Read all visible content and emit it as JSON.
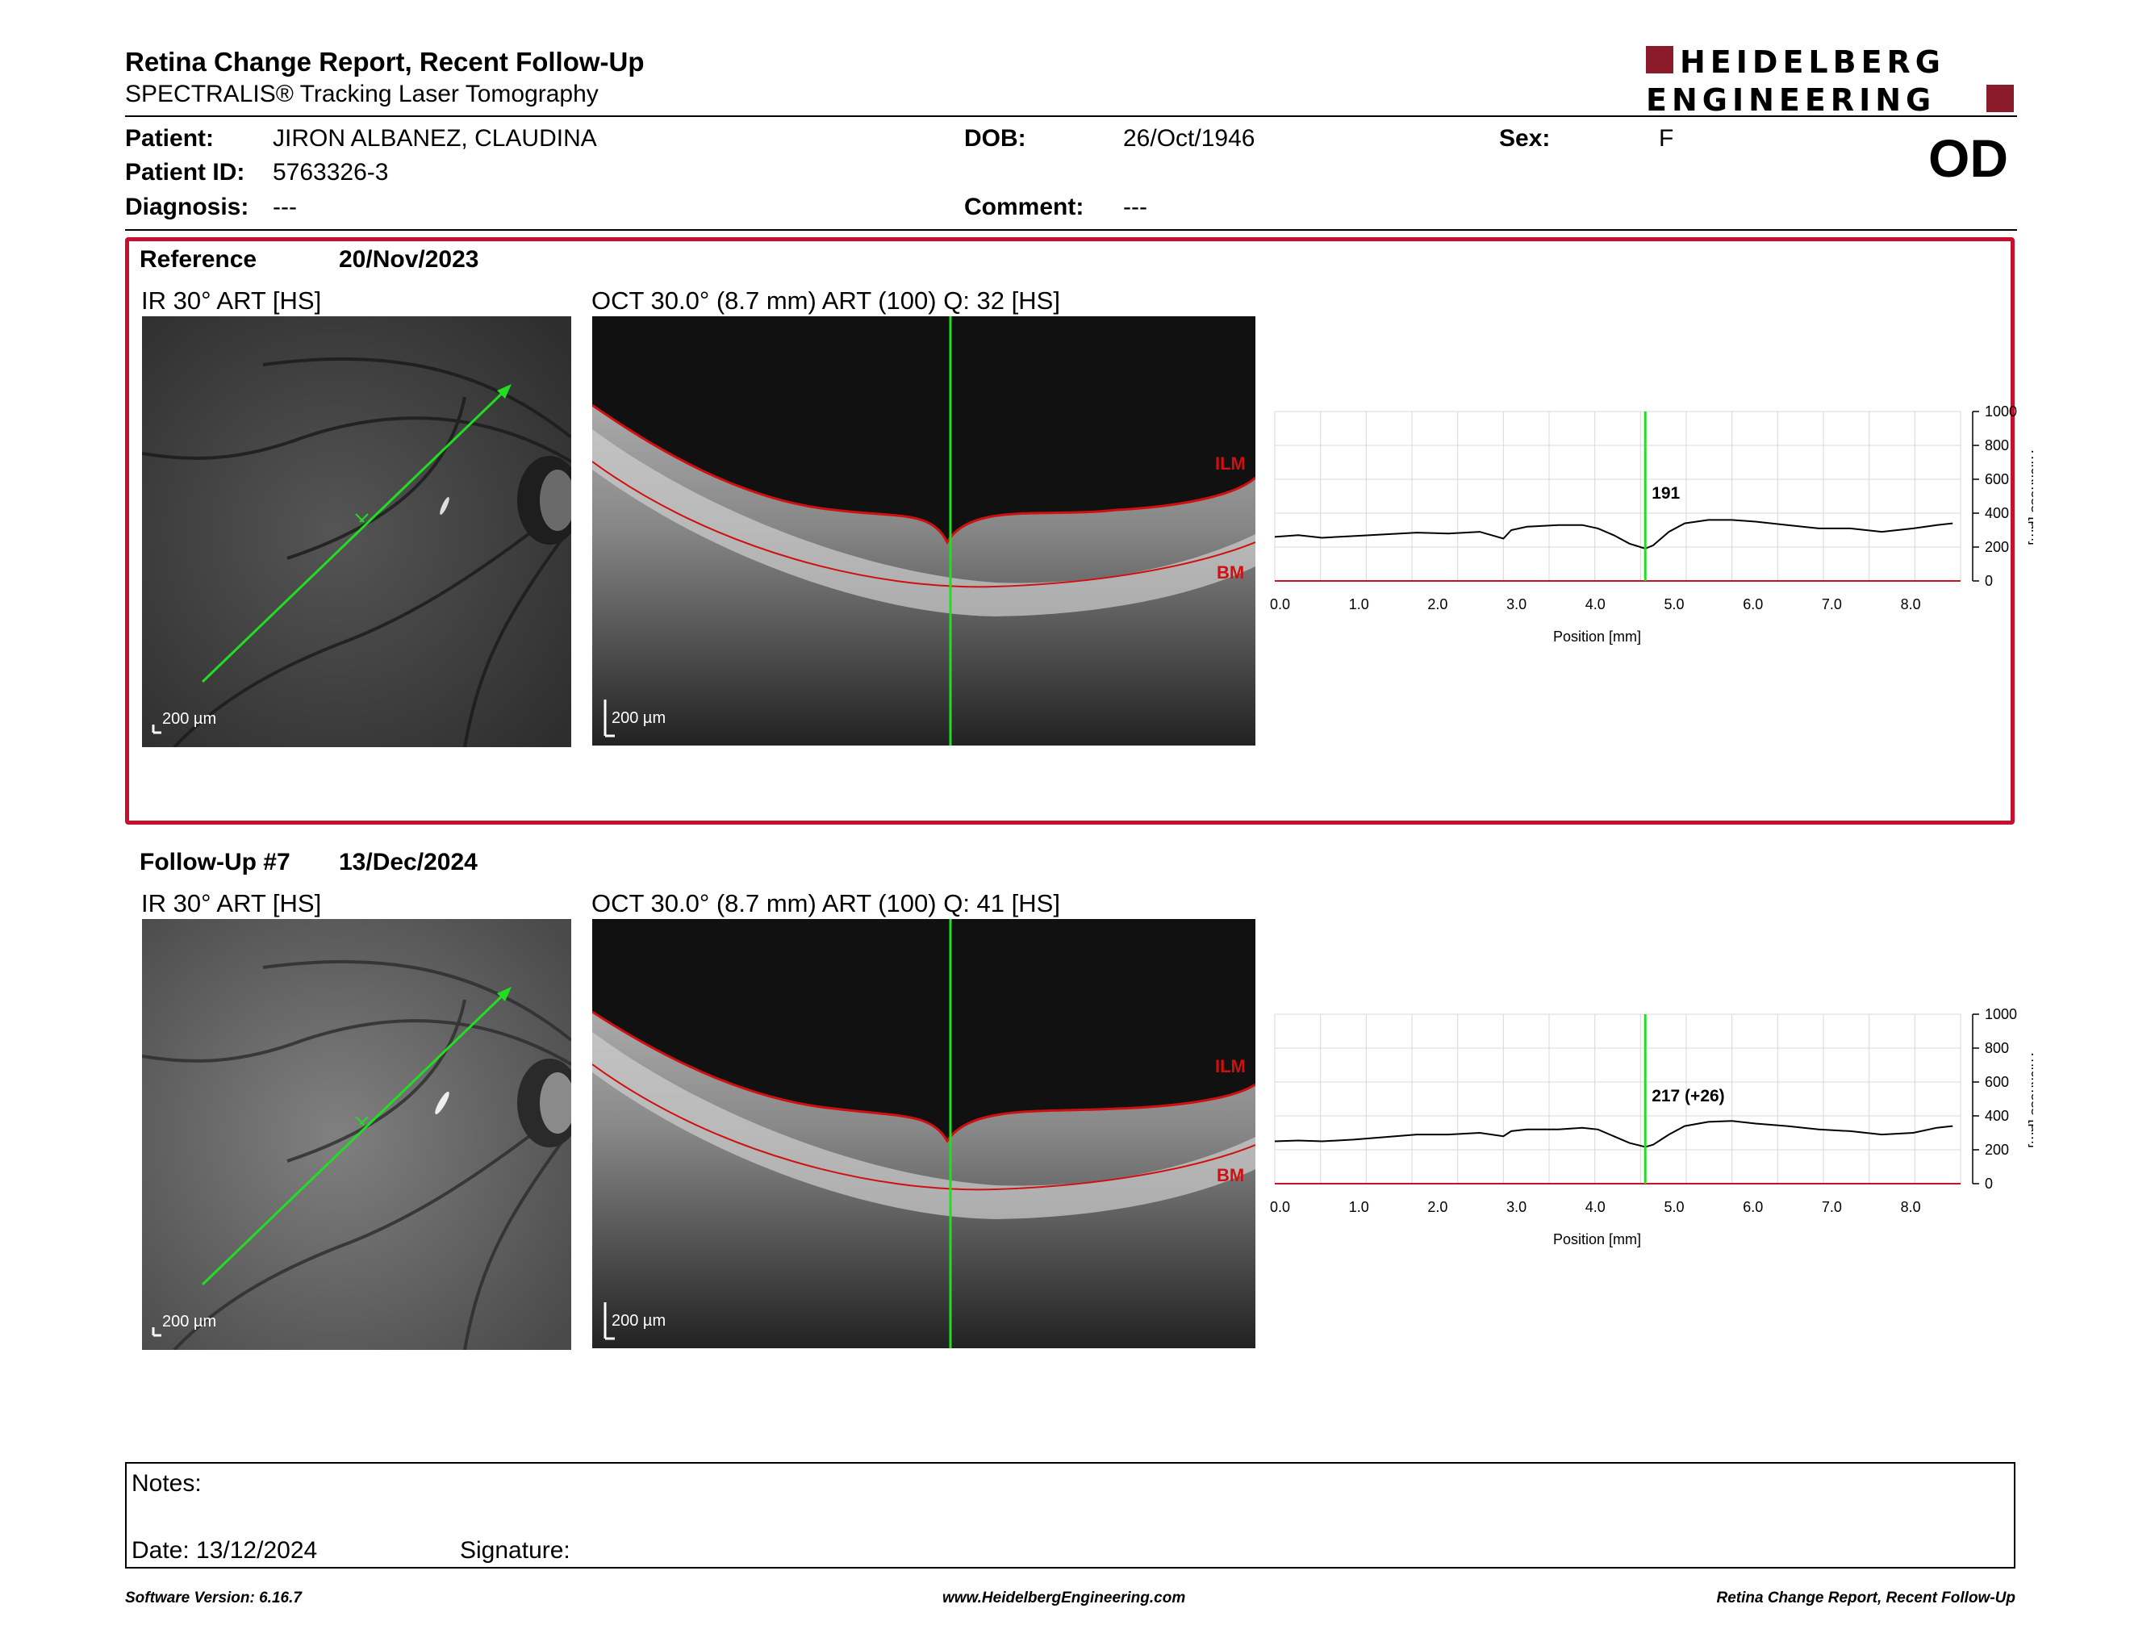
{
  "header": {
    "title": "Retina Change Report, Recent Follow-Up",
    "subtitle": "SPECTRALIS® Tracking Laser Tomography",
    "logo_line1": "HEIDELBERG",
    "logo_line2": "ENGINEERING",
    "eye": "OD"
  },
  "patient": {
    "name_label": "Patient:",
    "name": "JIRON ALBANEZ, CLAUDINA",
    "id_label": "Patient ID:",
    "id": "5763326-3",
    "diagnosis_label": "Diagnosis:",
    "diagnosis": "---",
    "dob_label": "DOB:",
    "dob": "26/Oct/1946",
    "comment_label": "Comment:",
    "comment": "---",
    "sex_label": "Sex:",
    "sex": "F"
  },
  "reference": {
    "label": "Reference",
    "date": "20/Nov/2023",
    "ir_caption": "IR 30° ART [HS]",
    "oct_caption": "OCT 30.0° (8.7 mm) ART (100) Q: 32 [HS]",
    "scale": "200 µm",
    "ilm": "ILM",
    "bm": "BM"
  },
  "followup": {
    "label": "Follow-Up #7",
    "date": "13/Dec/2024",
    "ir_caption": "IR 30° ART [HS]",
    "oct_caption": "OCT 30.0° (8.7 mm) ART (100) Q: 41 [HS]",
    "scale": "200 µm",
    "ilm": "ILM",
    "bm": "BM"
  },
  "notes": {
    "notes_label": "Notes:",
    "date_label": "Date: 13/12/2024",
    "signature_label": "Signature:"
  },
  "footer": {
    "left": "Software Version: 6.16.7",
    "center": "www.HeidelbergEngineering.com",
    "right": "Retina Change Report, Recent Follow-Up"
  },
  "colors": {
    "accent_red": "#c8102e",
    "scan_green": "#22dd22",
    "logo_red": "#8b1a2b"
  },
  "chart_data": [
    {
      "type": "line",
      "xlabel": "Position [mm]",
      "ylabel": "Thickness [µm]",
      "xlim": [
        0,
        8.7
      ],
      "ylim": [
        0,
        1000
      ],
      "x_ticks": [
        "0.0",
        "1.0",
        "2.0",
        "3.0",
        "4.0",
        "5.0",
        "6.0",
        "7.0",
        "8.0"
      ],
      "y_ticks": [
        "0",
        "200",
        "400",
        "600",
        "800",
        "1000"
      ],
      "cursor_x": 4.7,
      "cursor_label": "191",
      "x": [
        0,
        0.3,
        0.6,
        1.0,
        1.4,
        1.8,
        2.2,
        2.6,
        2.9,
        3.0,
        3.2,
        3.6,
        3.9,
        4.1,
        4.3,
        4.5,
        4.7,
        4.8,
        5.0,
        5.2,
        5.5,
        5.8,
        6.1,
        6.5,
        6.9,
        7.3,
        7.7,
        8.1,
        8.4,
        8.6
      ],
      "series": [
        {
          "values": [
            260,
            270,
            255,
            265,
            275,
            285,
            280,
            290,
            250,
            300,
            320,
            330,
            330,
            310,
            270,
            220,
            191,
            210,
            290,
            340,
            360,
            360,
            350,
            330,
            310,
            310,
            290,
            310,
            330,
            340
          ]
        }
      ]
    },
    {
      "type": "line",
      "xlabel": "Position [mm]",
      "ylabel": "Thickness [µm]",
      "xlim": [
        0,
        8.7
      ],
      "ylim": [
        0,
        1000
      ],
      "x_ticks": [
        "0.0",
        "1.0",
        "2.0",
        "3.0",
        "4.0",
        "5.0",
        "6.0",
        "7.0",
        "8.0"
      ],
      "y_ticks": [
        "0",
        "200",
        "400",
        "600",
        "800",
        "1000"
      ],
      "cursor_x": 4.7,
      "cursor_label": "217 (+26)",
      "x": [
        0,
        0.3,
        0.6,
        1.0,
        1.4,
        1.8,
        2.2,
        2.6,
        2.9,
        3.0,
        3.2,
        3.6,
        3.9,
        4.1,
        4.3,
        4.5,
        4.7,
        4.8,
        5.0,
        5.2,
        5.5,
        5.8,
        6.1,
        6.5,
        6.9,
        7.3,
        7.7,
        8.1,
        8.4,
        8.6
      ],
      "series": [
        {
          "values": [
            250,
            255,
            250,
            260,
            275,
            290,
            290,
            300,
            280,
            310,
            320,
            320,
            330,
            320,
            280,
            240,
            217,
            230,
            290,
            340,
            365,
            370,
            355,
            340,
            320,
            310,
            290,
            300,
            330,
            340
          ]
        }
      ]
    }
  ]
}
